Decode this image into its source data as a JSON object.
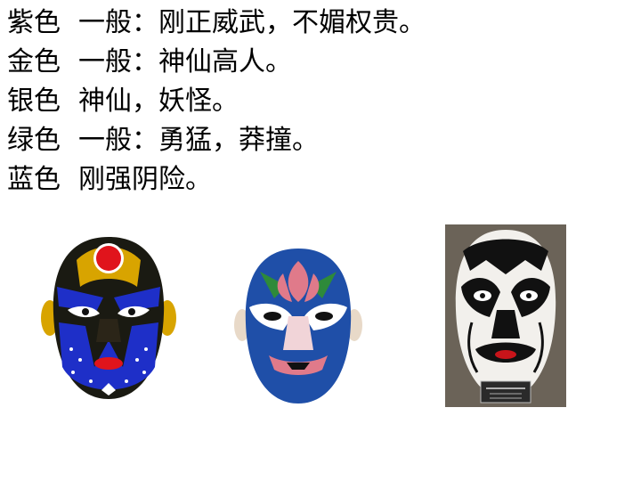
{
  "lines": [
    {
      "color": "紫色",
      "text": "一般：刚正威武，不媚权贵。"
    },
    {
      "color": "金色",
      "text": "一般：神仙高人。"
    },
    {
      "color": "银色",
      "text": "神仙，妖怪。"
    },
    {
      "color": "绿色",
      "text": "一般：勇猛，莽撞。"
    },
    {
      "color": "蓝色",
      "text": "刚强阴险。"
    }
  ],
  "masks": [
    {
      "name": "gold-mask",
      "palette": {
        "base": "#1a1a12",
        "gold": "#d8a400",
        "blue": "#1e2fc8",
        "red": "#e0141c"
      }
    },
    {
      "name": "blue-mask",
      "palette": {
        "base": "#1f4fa8",
        "white": "#ffffff",
        "pink": "#e07a8a",
        "green": "#2e8a3a"
      }
    },
    {
      "name": "black-white-mask",
      "palette": {
        "base": "#f2f0ec",
        "black": "#111111",
        "red": "#c8141a"
      }
    }
  ]
}
